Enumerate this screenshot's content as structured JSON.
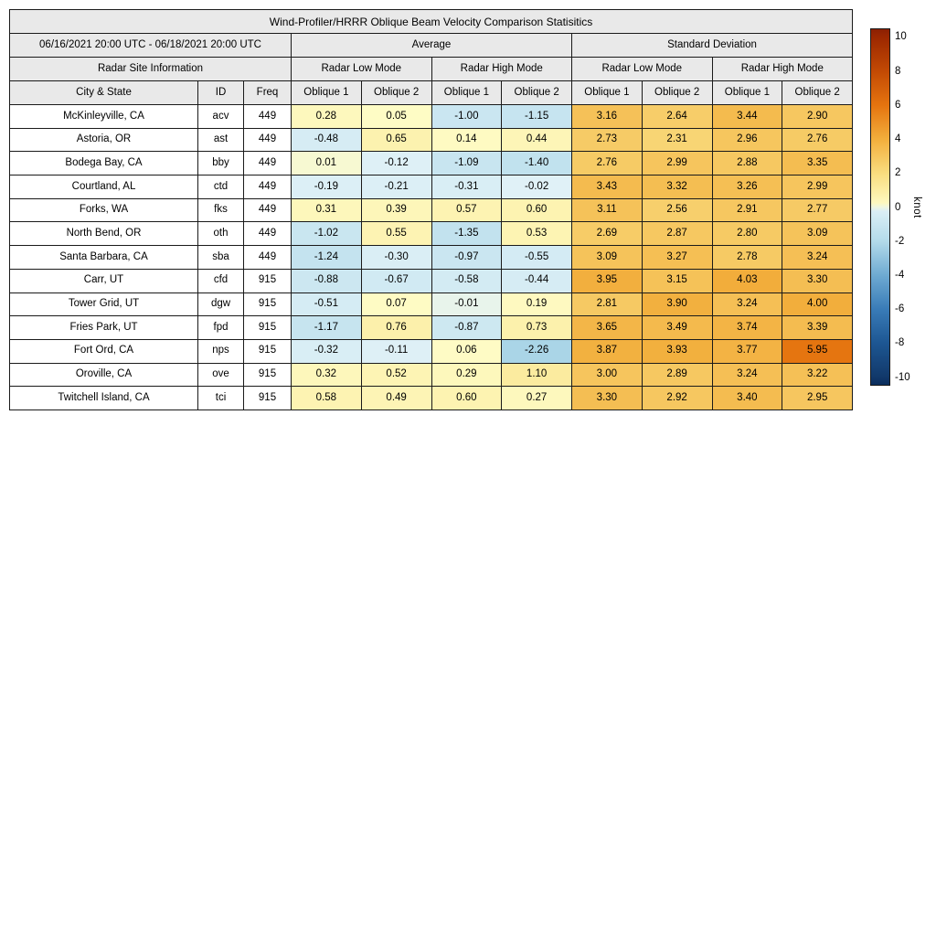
{
  "chart_data": {
    "type": "heatmap-table",
    "title": "Wind-Profiler/HRRR Oblique Beam Velocity Comparison Statisitics",
    "period": "06/16/2021 20:00 UTC - 06/18/2021 20:00 UTC",
    "group_headers": {
      "average": "Average",
      "std_dev": "Standard Deviation",
      "site_info": "Radar Site Information",
      "low_mode": "Radar Low Mode",
      "high_mode": "Radar High Mode"
    },
    "column_headers": {
      "city": "City & State",
      "id": "ID",
      "freq": "Freq",
      "oblique1": "Oblique 1",
      "oblique2": "Oblique 2"
    },
    "rows": [
      {
        "city": "McKinleyville, CA",
        "id": "acv",
        "freq": 449,
        "values": [
          0.28,
          0.05,
          -1.0,
          -1.15,
          3.16,
          2.64,
          3.44,
          2.9
        ]
      },
      {
        "city": "Astoria, OR",
        "id": "ast",
        "freq": 449,
        "values": [
          -0.48,
          0.65,
          0.14,
          0.44,
          2.73,
          2.31,
          2.96,
          2.76
        ]
      },
      {
        "city": "Bodega Bay, CA",
        "id": "bby",
        "freq": 449,
        "values": [
          0.01,
          -0.12,
          -1.09,
          -1.4,
          2.76,
          2.99,
          2.88,
          3.35
        ]
      },
      {
        "city": "Courtland, AL",
        "id": "ctd",
        "freq": 449,
        "values": [
          -0.19,
          -0.21,
          -0.31,
          -0.02,
          3.43,
          3.32,
          3.26,
          2.99
        ]
      },
      {
        "city": "Forks, WA",
        "id": "fks",
        "freq": 449,
        "values": [
          0.31,
          0.39,
          0.57,
          0.6,
          3.11,
          2.56,
          2.91,
          2.77
        ]
      },
      {
        "city": "North Bend, OR",
        "id": "oth",
        "freq": 449,
        "values": [
          -1.02,
          0.55,
          -1.35,
          0.53,
          2.69,
          2.87,
          2.8,
          3.09
        ]
      },
      {
        "city": "Santa Barbara, CA",
        "id": "sba",
        "freq": 449,
        "values": [
          -1.24,
          -0.3,
          -0.97,
          -0.55,
          3.09,
          3.27,
          2.78,
          3.24
        ]
      },
      {
        "city": "Carr, UT",
        "id": "cfd",
        "freq": 915,
        "values": [
          -0.88,
          -0.67,
          -0.58,
          -0.44,
          3.95,
          3.15,
          4.03,
          3.3
        ]
      },
      {
        "city": "Tower Grid, UT",
        "id": "dgw",
        "freq": 915,
        "values": [
          -0.51,
          0.07,
          -0.01,
          0.19,
          2.81,
          3.9,
          3.24,
          4.0
        ]
      },
      {
        "city": "Fries Park, UT",
        "id": "fpd",
        "freq": 915,
        "values": [
          -1.17,
          0.76,
          -0.87,
          0.73,
          3.65,
          3.49,
          3.74,
          3.39
        ]
      },
      {
        "city": "Fort Ord, CA",
        "id": "nps",
        "freq": 915,
        "values": [
          -0.32,
          -0.11,
          0.06,
          -2.26,
          3.87,
          3.93,
          3.77,
          5.95
        ]
      },
      {
        "city": "Oroville, CA",
        "id": "ove",
        "freq": 915,
        "values": [
          0.32,
          0.52,
          0.29,
          1.1,
          3.0,
          2.89,
          3.24,
          3.22
        ]
      },
      {
        "city": "Twitchell Island, CA",
        "id": "tci",
        "freq": 915,
        "values": [
          0.58,
          0.49,
          0.6,
          0.27,
          3.3,
          2.92,
          3.4,
          2.95
        ]
      }
    ],
    "colorbar": {
      "unit": "knot",
      "vmin": -10.5,
      "vmax": 10.5,
      "ticks": [
        10,
        8,
        6,
        4,
        2,
        0,
        -2,
        -4,
        -6,
        -8,
        -10
      ],
      "colormap_anchors": [
        [
          -10.5,
          "#0a2d5c"
        ],
        [
          -10,
          "#12396b"
        ],
        [
          -8,
          "#1d5793"
        ],
        [
          -6,
          "#3a7cb8"
        ],
        [
          -4,
          "#6fabd2"
        ],
        [
          -2,
          "#b3dbea"
        ],
        [
          -0.02,
          "#e0f1f7"
        ],
        [
          0.02,
          "#fefcc6"
        ],
        [
          2,
          "#f9dc7e"
        ],
        [
          4,
          "#f2ae3c"
        ],
        [
          6,
          "#e5740f"
        ],
        [
          8,
          "#c34a04"
        ],
        [
          10,
          "#9c2800"
        ],
        [
          10.5,
          "#8b1f03"
        ]
      ]
    },
    "style": {
      "header_bg": "#e9e9e9",
      "label_bg": "#ffffff",
      "border_color": "#1a1a1a"
    }
  }
}
